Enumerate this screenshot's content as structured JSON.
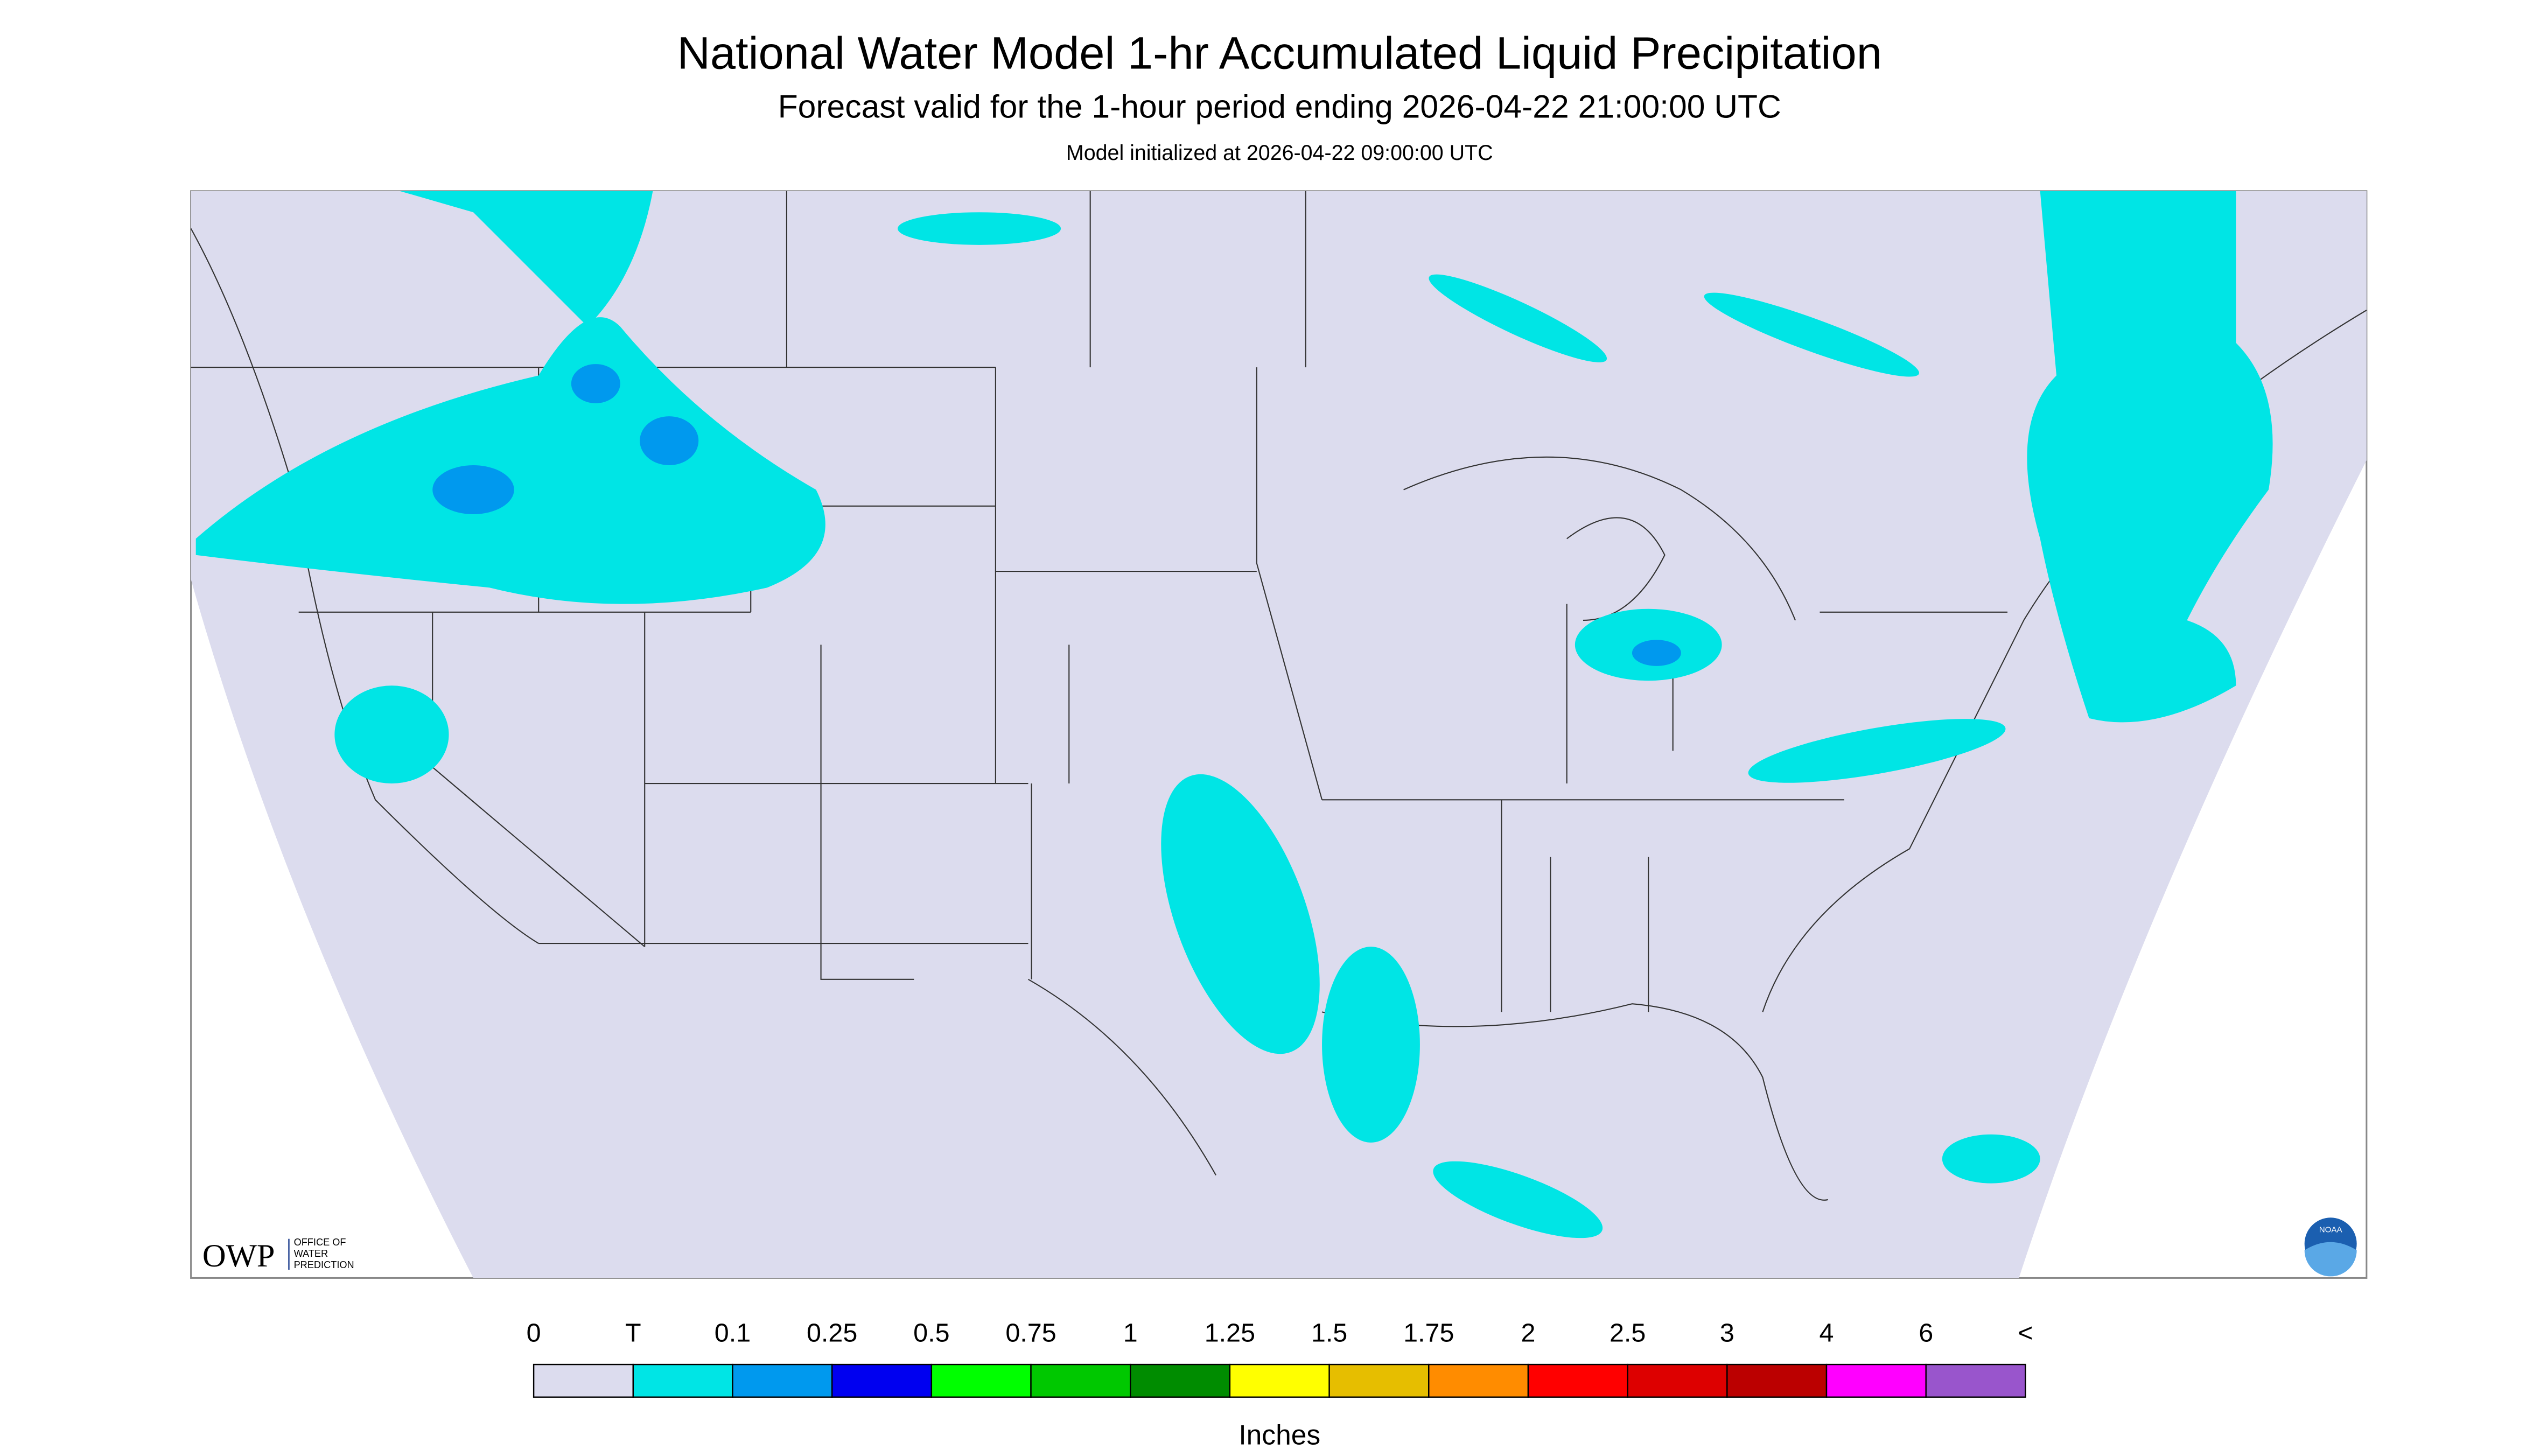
{
  "header": {
    "title": "National Water Model 1-hr Accumulated Liquid Precipitation",
    "subtitle": "Forecast valid for the 1-hour period ending 2026-04-22 21:00:00 UTC",
    "note": "Model initialized at 2026-04-22 09:00:00 UTC"
  },
  "logo": {
    "name": "OWP",
    "text": [
      "OFFICE OF",
      "WATER",
      "PREDICTION"
    ],
    "agency": "NOAA"
  },
  "legend": {
    "labels": [
      "0",
      "T",
      "0.1",
      "0.25",
      "0.5",
      "0.75",
      "1",
      "1.25",
      "1.5",
      "1.75",
      "2",
      "2.5",
      "3",
      "4",
      "6",
      "<"
    ],
    "colors": [
      "#dcdcee",
      "#00e5e5",
      "#0099ee",
      "#0000f0",
      "#00ff00",
      "#00c800",
      "#008c00",
      "#ffff00",
      "#e6be00",
      "#ff8c00",
      "#ff0000",
      "#dd0000",
      "#bb0000",
      "#ff00ff",
      "#9955cc"
    ],
    "unit": "Inches"
  }
}
